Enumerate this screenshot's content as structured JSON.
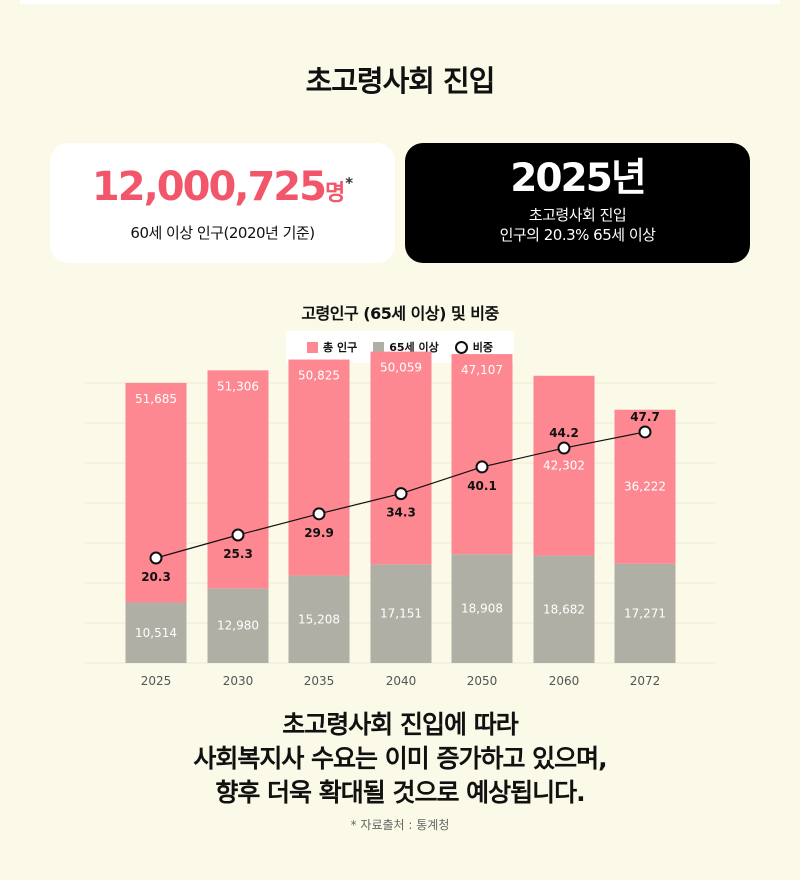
{
  "title": "초고령사회 진입",
  "stat_left": {
    "number": "12,000,725",
    "unit": "명",
    "mark": "*",
    "caption": "60세 이상 인구(2020년 기준)"
  },
  "stat_right": {
    "year": "2025년",
    "line1": "초고령사회 진입",
    "line2": "인구의 20.3% 65세 이상"
  },
  "colors": {
    "total": "#fe8892",
    "elder": "#afafa5",
    "accent": "#f2566a"
  },
  "chart_data": {
    "type": "bar",
    "title": "고령인구 (65세 이상) 및 비중",
    "stacked": true,
    "categories": [
      "2025",
      "2030",
      "2035",
      "2040",
      "2050",
      "2060",
      "2072"
    ],
    "series": [
      {
        "name": "65세 이상",
        "values": [
          10514,
          12980,
          15208,
          17151,
          18908,
          18682,
          17271
        ],
        "labels": [
          "10,514",
          "12,980",
          "15,208",
          "17,151",
          "18,908",
          "18,682",
          "17,271"
        ]
      },
      {
        "name": "총 인구",
        "values": [
          51685,
          51306,
          50825,
          50059,
          47107,
          42302,
          36222
        ],
        "labels": [
          "51,685",
          "51,306",
          "50,825",
          "50,059",
          "47,107",
          "42,302",
          "36,222"
        ]
      }
    ],
    "line_series": {
      "name": "비중",
      "values": [
        20.3,
        25.3,
        29.9,
        34.3,
        40.1,
        44.2,
        47.7
      ]
    },
    "legend": [
      "총 인구",
      "65세 이상",
      "비중"
    ],
    "legend_position": "top",
    "grid": true
  },
  "bottom": {
    "line1": "초고령사회 진입에 따라",
    "line2": "사회복지사 수요는 이미 증가하고 있으며,",
    "line3": "향후 더욱 확대될 것으로 예상됩니다."
  },
  "source": "* 자료출처 : 통계청"
}
